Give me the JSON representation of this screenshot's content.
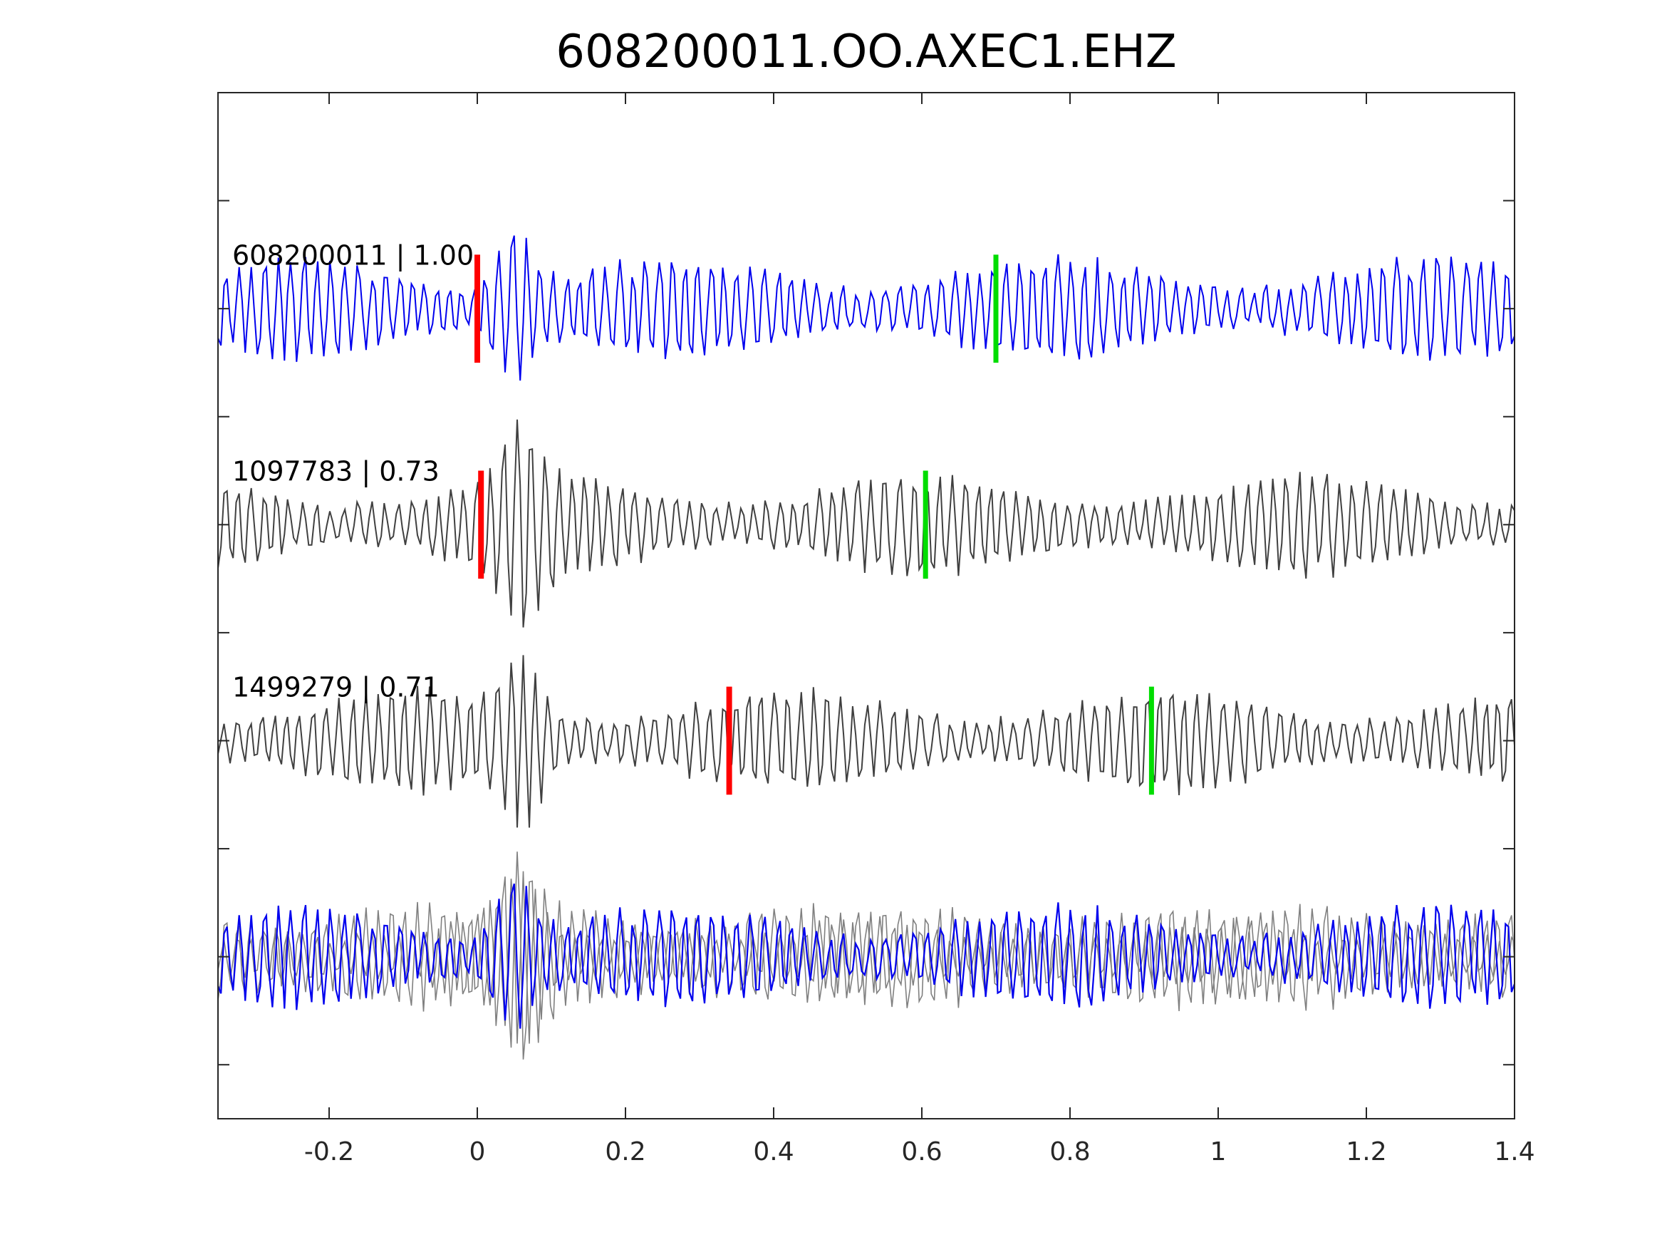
{
  "chart_data": {
    "type": "line",
    "title": "608200011.OO.AXEC1.EHZ",
    "xlabel": "",
    "ylabel": "",
    "xlim": [
      -0.35,
      1.4
    ],
    "x_ticks": [
      -0.2,
      0,
      0.2,
      0.4,
      0.6,
      0.8,
      1,
      1.2,
      1.4
    ],
    "x_tick_labels": [
      "-0.2",
      "0",
      "0.2",
      "0.4",
      "0.6",
      "0.8",
      "1",
      "1.2",
      "1.4"
    ],
    "y_tick_count": 10,
    "grid": false,
    "legend": "none",
    "colors": {
      "reference": "#0000ee",
      "match": "#404040",
      "overlay": "#808080",
      "p_pick": "#ff0000",
      "s_pick": "#00dd00",
      "axes": "#262626"
    },
    "traces": [
      {
        "label": "608200011 | 1.00",
        "event_id": "608200011",
        "correlation": 1.0,
        "color": "reference",
        "p_pick": 0.0,
        "s_pick": 0.7,
        "arrival_time": 0.0
      },
      {
        "label": "1097783 | 0.73",
        "event_id": "1097783",
        "correlation": 0.73,
        "color": "match",
        "p_pick": 0.005,
        "s_pick": 0.605,
        "arrival_time": 0.005
      },
      {
        "label": "1499279 | 0.71",
        "event_id": "1499279",
        "correlation": 0.71,
        "color": "match",
        "p_pick": 0.34,
        "s_pick": 0.91,
        "arrival_time": 0.005
      }
    ],
    "overlay_panel": {
      "label": "",
      "shows": [
        "1097783",
        "1499279",
        "608200011"
      ]
    }
  }
}
